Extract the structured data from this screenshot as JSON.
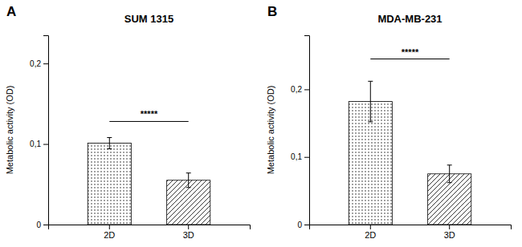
{
  "chart_data": [
    {
      "type": "bar",
      "title": "SUM 1315",
      "panel_label": "A",
      "categories": [
        "2D",
        "3D"
      ],
      "values": [
        0.101,
        0.055
      ],
      "errors": [
        0.007,
        0.009
      ],
      "color": "#ffffff",
      "ylabel": "Metabolic activity (OD)",
      "ylim": [
        0,
        0.235
      ],
      "yticks": [
        0,
        {
          "value": 0.1,
          "label": "0,1"
        },
        {
          "value": 0.2,
          "label": "0,2"
        }
      ],
      "significance": {
        "text": "*****",
        "y": 0.131,
        "bar_y": 0.128
      }
    },
    {
      "type": "bar",
      "title": "MDA-MB-231",
      "panel_label": "B",
      "categories": [
        "2D",
        "3D"
      ],
      "values": [
        0.182,
        0.075
      ],
      "errors": [
        0.03,
        0.013
      ],
      "color": "#ffffff",
      "ylabel": "Metabolic activity (OD)",
      "ylim": [
        0,
        0.28
      ],
      "yticks": [
        0,
        {
          "value": 0.1,
          "label": "0,1"
        },
        {
          "value": 0.2,
          "label": "0,2"
        }
      ],
      "significance": {
        "text": "*****",
        "y": 0.248,
        "bar_y": 0.245
      }
    }
  ]
}
